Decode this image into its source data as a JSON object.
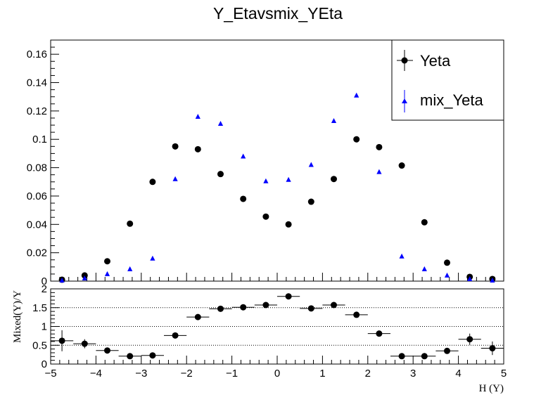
{
  "chart_data": [
    {
      "type": "scatter",
      "title": "Y_Etavsmix_YEta",
      "xlim": [
        -5,
        5
      ],
      "ylim": [
        0,
        0.17
      ],
      "x": [
        -4.75,
        -4.25,
        -3.75,
        -3.25,
        -2.75,
        -2.25,
        -1.75,
        -1.25,
        -0.75,
        -0.25,
        0.25,
        0.75,
        1.25,
        1.75,
        2.25,
        2.75,
        3.25,
        3.75,
        4.25,
        4.75
      ],
      "yticks": [
        "0",
        "0.02",
        "0.04",
        "0.06",
        "0.08",
        "0.1",
        "0.12",
        "0.14",
        "0.16"
      ],
      "ytick_values": [
        0,
        0.02,
        0.04,
        0.06,
        0.08,
        0.1,
        0.12,
        0.14,
        0.16
      ],
      "legend_position": "top-right",
      "series": [
        {
          "name": "Yeta",
          "marker": "circle",
          "color": "#000000",
          "values": [
            0.001,
            0.004,
            0.014,
            0.0405,
            0.07,
            0.095,
            0.093,
            0.0755,
            0.058,
            0.0455,
            0.04,
            0.056,
            0.072,
            0.1,
            0.0945,
            0.0815,
            0.0415,
            0.013,
            0.003,
            0.0015
          ]
        },
        {
          "name": "mix_Yeta",
          "marker": "triangle",
          "color": "#0000ff",
          "values": [
            0.0005,
            0.002,
            0.005,
            0.0085,
            0.016,
            0.072,
            0.116,
            0.111,
            0.088,
            0.0705,
            0.0715,
            0.082,
            0.113,
            0.131,
            0.077,
            0.0175,
            0.0085,
            0.004,
            0.0015,
            0.0005
          ]
        }
      ]
    },
    {
      "type": "scatter",
      "xlabel": "H (Y)",
      "ylabel": "Mixed(Y)/Y",
      "xlim": [
        -5,
        5
      ],
      "ylim": [
        0,
        2
      ],
      "xticks": [
        "−5",
        "−4",
        "−3",
        "−2",
        "−1",
        "0",
        "1",
        "2",
        "3",
        "4",
        "5"
      ],
      "xtick_values": [
        -5,
        -4,
        -3,
        -2,
        -1,
        0,
        1,
        2,
        3,
        4,
        5
      ],
      "yticks": [
        "0",
        "0.5",
        "1",
        "1.5",
        "2"
      ],
      "ytick_values": [
        0,
        0.5,
        1,
        1.5,
        2
      ],
      "gridlines_y": [
        0.5,
        1,
        1.5
      ],
      "series": [
        {
          "marker": "circle",
          "color": "#000000",
          "x": [
            -4.75,
            -4.25,
            -3.75,
            -3.25,
            -2.75,
            -2.25,
            -1.75,
            -1.25,
            -0.75,
            -0.25,
            0.25,
            0.75,
            1.25,
            1.75,
            2.25,
            2.75,
            3.25,
            3.75,
            4.25,
            4.75
          ],
          "values": [
            0.62,
            0.54,
            0.36,
            0.21,
            0.23,
            0.76,
            1.25,
            1.47,
            1.51,
            1.57,
            1.8,
            1.48,
            1.57,
            1.31,
            0.81,
            0.21,
            0.21,
            0.35,
            0.66,
            0.42
          ],
          "errors": [
            0.28,
            0.12,
            0.05,
            0.04,
            0.03,
            0.04,
            0.05,
            0.05,
            0.05,
            0.06,
            0.08,
            0.05,
            0.05,
            0.05,
            0.03,
            0.03,
            0.04,
            0.05,
            0.15,
            0.18
          ]
        }
      ]
    }
  ]
}
